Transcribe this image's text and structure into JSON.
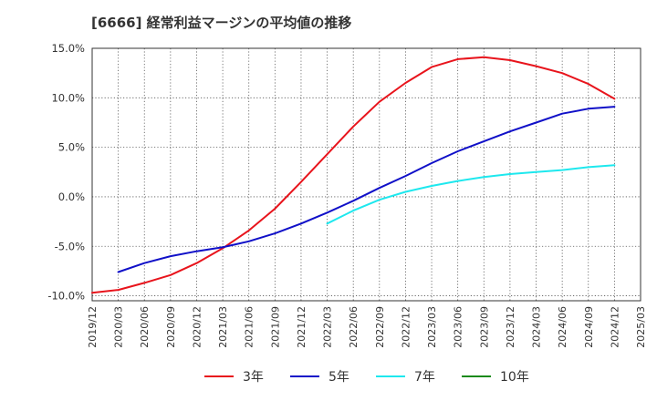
{
  "chart_data": {
    "type": "line",
    "title": "[6666]  経常利益マージンの平均値の推移",
    "y_unit": "%",
    "ylim": [
      -10.5,
      15
    ],
    "y_ticks": [
      15,
      10,
      5,
      0,
      -5,
      -10
    ],
    "y_tick_labels": [
      "15.0%",
      "10.0%",
      "5.0%",
      "0.0%",
      "-5.0%",
      "-10.0%"
    ],
    "x_tick_labels": [
      "2019/12",
      "2020/03",
      "2020/06",
      "2020/09",
      "2020/12",
      "2021/03",
      "2021/06",
      "2021/09",
      "2021/12",
      "2022/03",
      "2022/06",
      "2022/09",
      "2022/12",
      "2023/03",
      "2023/06",
      "2023/09",
      "2023/12",
      "2024/03",
      "2024/06",
      "2024/09",
      "2024/12",
      "2025/03"
    ],
    "grid": true,
    "legend_position": "bottom",
    "series": [
      {
        "name": "3年",
        "color": "#e8141c",
        "x": [
          "2019/12",
          "2020/03",
          "2020/06",
          "2020/09",
          "2020/12",
          "2021/03",
          "2021/06",
          "2021/09",
          "2021/12",
          "2022/03",
          "2022/06",
          "2022/09",
          "2022/12",
          "2023/03",
          "2023/06",
          "2023/09",
          "2023/12",
          "2024/03",
          "2024/06",
          "2024/09",
          "2024/12"
        ],
        "values": [
          -9.7,
          -9.4,
          -8.7,
          -7.9,
          -6.7,
          -5.2,
          -3.4,
          -1.2,
          1.5,
          4.3,
          7.1,
          9.6,
          11.5,
          13.1,
          13.9,
          14.1,
          13.8,
          13.2,
          12.5,
          11.4,
          9.9
        ]
      },
      {
        "name": "5年",
        "color": "#1010c8",
        "x": [
          "2020/03",
          "2020/06",
          "2020/09",
          "2020/12",
          "2021/03",
          "2021/06",
          "2021/09",
          "2021/12",
          "2022/03",
          "2022/06",
          "2022/09",
          "2022/12",
          "2023/03",
          "2023/06",
          "2023/09",
          "2023/12",
          "2024/03",
          "2024/06",
          "2024/09",
          "2024/12"
        ],
        "values": [
          -7.6,
          -6.7,
          -6.0,
          -5.5,
          -5.1,
          -4.5,
          -3.7,
          -2.7,
          -1.6,
          -0.4,
          0.9,
          2.1,
          3.4,
          4.6,
          5.6,
          6.6,
          7.5,
          8.4,
          8.9,
          9.1
        ]
      },
      {
        "name": "7年",
        "color": "#1ee8ee",
        "x": [
          "2022/03",
          "2022/06",
          "2022/09",
          "2022/12",
          "2023/03",
          "2023/06",
          "2023/09",
          "2023/12",
          "2024/03",
          "2024/06",
          "2024/09",
          "2024/12"
        ],
        "values": [
          -2.7,
          -1.4,
          -0.3,
          0.5,
          1.1,
          1.6,
          2.0,
          2.3,
          2.5,
          2.7,
          3.0,
          3.2
        ]
      },
      {
        "name": "10年",
        "color": "#1a8a1a",
        "x": [],
        "values": []
      }
    ]
  }
}
